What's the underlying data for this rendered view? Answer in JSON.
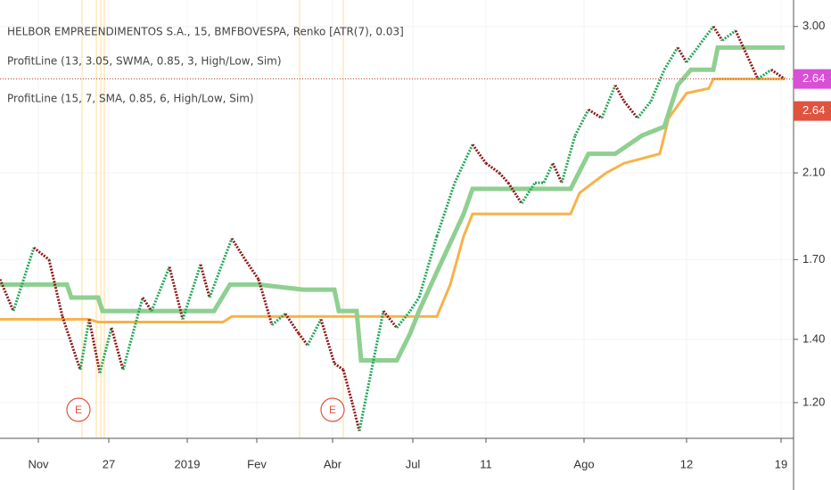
{
  "chart_data": {
    "type": "renko",
    "title": "HELBOR EMPREENDIMENTOS S.A., 15, BMFBOVESPA, Renko [ATR(7), 0.03]",
    "log_scale": true,
    "xlim": [
      0,
      890
    ],
    "ylim": [
      1.1,
      3.2
    ],
    "yticks": [
      {
        "value": 1.2,
        "label": "1.20"
      },
      {
        "value": 1.4,
        "label": "1.40"
      },
      {
        "value": 1.7,
        "label": "1.70"
      },
      {
        "value": 2.1,
        "label": "2.10"
      },
      {
        "value": 3,
        "label": "3.00"
      }
    ],
    "xticks": [
      {
        "value": 43,
        "label": "Nov"
      },
      {
        "value": 122,
        "label": "27"
      },
      {
        "value": 210,
        "label": "2019"
      },
      {
        "value": 288,
        "label": "Fev"
      },
      {
        "value": 373,
        "label": "Abr"
      },
      {
        "value": 463,
        "label": "Jul"
      },
      {
        "value": 545,
        "label": "11"
      },
      {
        "value": 655,
        "label": "Ago"
      },
      {
        "value": 770,
        "label": "12"
      },
      {
        "value": 876,
        "label": "19"
      }
    ],
    "up_color": "#26a65b",
    "down_color": "#8b1a1a",
    "series": [
      {
        "name": "Renko",
        "x": [
          0,
          15,
          38,
          55,
          70,
          90,
          100,
          112,
          125,
          138,
          160,
          170,
          190,
          205,
          225,
          235,
          260,
          275,
          290,
          305,
          320,
          335,
          345,
          360,
          375,
          385,
          395,
          403,
          430,
          445,
          460,
          470,
          490,
          510,
          530,
          545,
          560,
          570,
          585,
          600,
          610,
          620,
          630,
          645,
          660,
          675,
          690,
          700,
          715,
          730,
          745,
          760,
          770,
          800,
          810,
          825,
          850,
          865,
          880
        ],
        "values": [
          1.62,
          1.5,
          1.75,
          1.7,
          1.48,
          1.3,
          1.47,
          1.29,
          1.44,
          1.3,
          1.55,
          1.5,
          1.67,
          1.47,
          1.68,
          1.55,
          1.79,
          1.7,
          1.62,
          1.45,
          1.49,
          1.42,
          1.38,
          1.47,
          1.32,
          1.3,
          1.2,
          1.12,
          1.5,
          1.44,
          1.5,
          1.55,
          1.8,
          2.05,
          2.25,
          2.15,
          2.1,
          2.05,
          1.95,
          2.05,
          2.05,
          2.15,
          2.05,
          2.3,
          2.45,
          2.4,
          2.6,
          2.5,
          2.4,
          2.5,
          2.7,
          2.85,
          2.75,
          3,
          2.9,
          2.97,
          2.64,
          2.7,
          2.64
        ]
      },
      {
        "name": "ProfitLine (13, 3.05, SWMA, 0.85, 3, High/Low, Sim)",
        "color": "#8fcf91",
        "x": [
          0,
          75,
          80,
          110,
          115,
          240,
          258,
          290,
          340,
          375,
          380,
          400,
          405,
          445,
          460,
          470,
          490,
          520,
          530,
          640,
          660,
          690,
          720,
          745,
          760,
          775,
          800,
          805,
          880
        ],
        "values": [
          1.6,
          1.6,
          1.55,
          1.55,
          1.5,
          1.5,
          1.6,
          1.6,
          1.58,
          1.58,
          1.5,
          1.5,
          1.33,
          1.33,
          1.42,
          1.5,
          1.65,
          1.9,
          2.02,
          2.02,
          2.2,
          2.2,
          2.3,
          2.35,
          2.6,
          2.7,
          2.7,
          2.85,
          2.85
        ]
      },
      {
        "name": "ProfitLine (15, 7, SMA, 0.85, 6, High/Low, Sim)",
        "color": "#f7b24a",
        "x": [
          0,
          100,
          110,
          250,
          260,
          490,
          505,
          520,
          530,
          640,
          650,
          665,
          680,
          700,
          740,
          750,
          770,
          795,
          800,
          880
        ],
        "values": [
          1.47,
          1.47,
          1.46,
          1.46,
          1.48,
          1.48,
          1.6,
          1.8,
          1.9,
          1.9,
          2,
          2.05,
          2.1,
          2.15,
          2.2,
          2.4,
          2.55,
          2.58,
          2.64,
          2.64
        ]
      }
    ],
    "last_value_labels": [
      {
        "value": 2.64,
        "color": "#d94fd6"
      },
      {
        "value": 2.64,
        "color": "#e0533f"
      }
    ],
    "highlight_x": [
      92,
      108,
      113,
      117,
      336,
      385
    ],
    "events": [
      {
        "x": 88,
        "label": "E"
      },
      {
        "x": 373,
        "label": "E"
      }
    ]
  }
}
